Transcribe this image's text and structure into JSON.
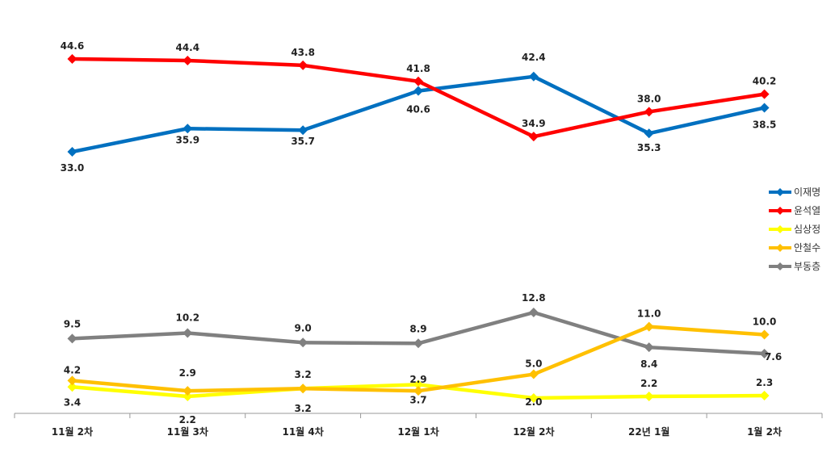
{
  "chart_data": {
    "type": "line",
    "categories": [
      "11월 2차",
      "11월 3차",
      "11월 4차",
      "12월 1차",
      "12월 2차",
      "22년 1월",
      "1월 2차"
    ],
    "series": [
      {
        "name": "이재명",
        "color": "#0070C0",
        "values": [
          33.0,
          35.9,
          35.7,
          40.6,
          42.4,
          35.3,
          38.5
        ],
        "labels": [
          "33.0",
          "35.9",
          "35.7",
          "40.6",
          "42.4",
          "35.3",
          "38.5"
        ]
      },
      {
        "name": "윤석열",
        "color": "#FF0000",
        "values": [
          44.6,
          44.4,
          43.8,
          41.8,
          34.9,
          38.0,
          40.2
        ],
        "labels": [
          "44.6",
          "44.4",
          "43.8",
          "41.8",
          "34.9",
          "38.0",
          "40.2"
        ]
      },
      {
        "name": "심상정",
        "color": "#FFFF00",
        "values": [
          3.4,
          2.2,
          3.2,
          3.7,
          2.0,
          2.2,
          2.3
        ],
        "labels": [
          "3.4",
          "2.2",
          "3.2",
          "3.7",
          "2.0",
          "2.2",
          "2.3"
        ]
      },
      {
        "name": "안철수",
        "color": "#FFC000",
        "values": [
          4.2,
          2.9,
          3.2,
          2.9,
          5.0,
          11.0,
          10.0
        ],
        "labels": [
          "4.2",
          "2.9",
          "3.2",
          "2.9",
          "5.0",
          "11.0",
          "10.0"
        ]
      },
      {
        "name": "부동층",
        "color": "#808080",
        "values": [
          9.5,
          10.2,
          9.0,
          8.9,
          12.8,
          8.4,
          7.6
        ],
        "labels": [
          "9.5",
          "10.2",
          "9.0",
          "8.9",
          "12.8",
          "8.4",
          "7.6"
        ]
      }
    ],
    "axis_break": true,
    "legend_position": "right",
    "grid": false
  }
}
